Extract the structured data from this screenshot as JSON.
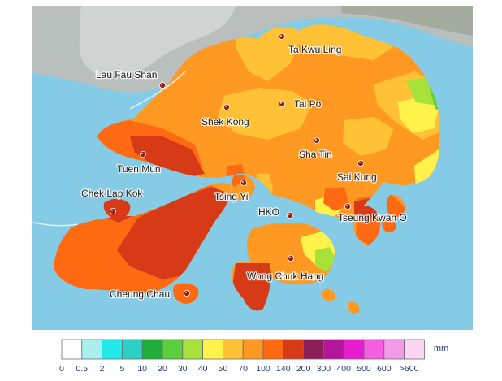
{
  "map": {
    "stations": [
      {
        "name": "Ta Kwu Ling",
        "icon": "station-dot-icon"
      },
      {
        "name": "Lau Fau Shan",
        "icon": "station-dot-icon"
      },
      {
        "name": "Tai Po",
        "icon": "station-dot-icon"
      },
      {
        "name": "Shek Kong",
        "icon": "station-dot-icon"
      },
      {
        "name": "Sha Tin",
        "icon": "station-dot-icon"
      },
      {
        "name": "Tuen Mun",
        "icon": "station-dot-icon"
      },
      {
        "name": "Sai Kung",
        "icon": "station-dot-icon"
      },
      {
        "name": "Chek Lap Kok",
        "icon": "station-dot-icon"
      },
      {
        "name": "Tsing Yi",
        "icon": "station-dot-icon"
      },
      {
        "name": "HKO",
        "icon": "station-dot-icon"
      },
      {
        "name": "Tseung Kwan O",
        "icon": "station-dot-icon"
      },
      {
        "name": "Wong Chuk Hang",
        "icon": "station-dot-icon"
      },
      {
        "name": "Cheung Chau",
        "icon": "station-dot-icon"
      }
    ]
  },
  "legend": {
    "unit": "mm",
    "colors": [
      "#ffffff",
      "#a8f0ee",
      "#22e8e8",
      "#2ed0c6",
      "#1fae3a",
      "#5ccf3c",
      "#a6e23a",
      "#fff24a",
      "#ffc236",
      "#ff9922",
      "#ff6a12",
      "#d63a16",
      "#8c1f5a",
      "#b4169a",
      "#e61ed0",
      "#f55ee0",
      "#f49ae8",
      "#fcd4f4"
    ],
    "tick_labels": [
      "0",
      "0.5",
      "2",
      "5",
      "10",
      "20",
      "30",
      "40",
      "50",
      "70",
      "100",
      "140",
      "200",
      "300",
      "400",
      "500",
      "600",
      ">600"
    ]
  }
}
